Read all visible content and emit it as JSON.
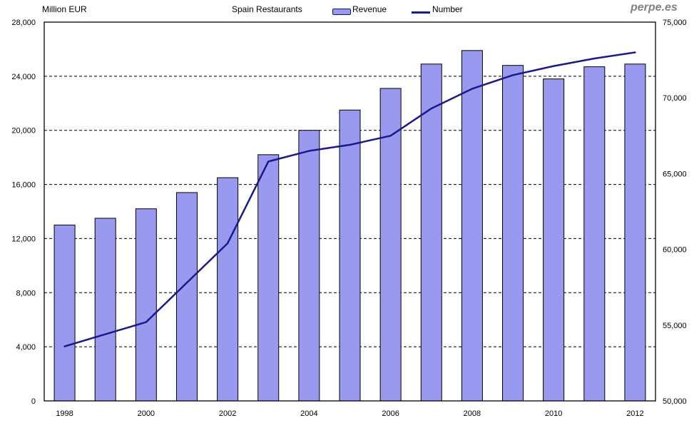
{
  "header": {
    "unit_label": "Million EUR",
    "title": "Spain Restaurants",
    "legend": [
      {
        "label": "Revenue",
        "type": "bar"
      },
      {
        "label": "Number",
        "type": "line"
      }
    ],
    "watermark": "perpe.es"
  },
  "colors": {
    "bar_fill": "#9999F0",
    "bar_border": "#000000",
    "line": "#1A1A8C",
    "grid": "#000000",
    "axis_text": "#000000",
    "watermark": "#808080",
    "plot_border": "#000000",
    "background": "#FFFFFF"
  },
  "chart_data": {
    "type": "combo (bar + line, dual axis)",
    "title": "Spain Restaurants",
    "x": [
      "1998",
      "1999",
      "2000",
      "2001",
      "2002",
      "2003",
      "2004",
      "2005",
      "2006",
      "2007",
      "2008",
      "2009",
      "2010",
      "2011",
      "2012"
    ],
    "x_labeled_ticks": [
      "1998",
      "2000",
      "2002",
      "2004",
      "2006",
      "2008",
      "2010",
      "2012"
    ],
    "series": [
      {
        "name": "Revenue",
        "type": "bar",
        "axis": "left",
        "unit": "Million EUR",
        "values": [
          13000,
          13500,
          14200,
          15400,
          16500,
          18200,
          20000,
          21500,
          23100,
          24900,
          25900,
          24800,
          23800,
          24700,
          24900
        ]
      },
      {
        "name": "Number",
        "type": "line",
        "axis": "right",
        "unit": "restaurants",
        "values": [
          53600,
          54400,
          55200,
          57800,
          60400,
          65800,
          66500,
          66900,
          67500,
          69300,
          70600,
          71500,
          72100,
          72600,
          73000
        ]
      }
    ],
    "left_axis": {
      "label": "Million EUR",
      "min": 0,
      "max": 28000,
      "ticks": [
        {
          "value": 0,
          "label": "0"
        },
        {
          "value": 4000,
          "label": "4,000"
        },
        {
          "value": 8000,
          "label": "8,000"
        },
        {
          "value": 12000,
          "label": "12,000"
        },
        {
          "value": 16000,
          "label": "16,000"
        },
        {
          "value": 20000,
          "label": "20,000"
        },
        {
          "value": 24000,
          "label": "24,000"
        },
        {
          "value": 28000,
          "label": "28,000"
        }
      ]
    },
    "right_axis": {
      "min": 50000,
      "max": 75000,
      "ticks": [
        {
          "value": 50000,
          "label": "50,000"
        },
        {
          "value": 55000,
          "label": "55,000"
        },
        {
          "value": 60000,
          "label": "60,000"
        },
        {
          "value": 65000,
          "label": "65,000"
        },
        {
          "value": 70000,
          "label": "70,000"
        },
        {
          "value": 75000,
          "label": "75,000"
        }
      ]
    },
    "grid": "horizontal dashed lines at left-axis ticks",
    "legend_position": "top-center"
  }
}
